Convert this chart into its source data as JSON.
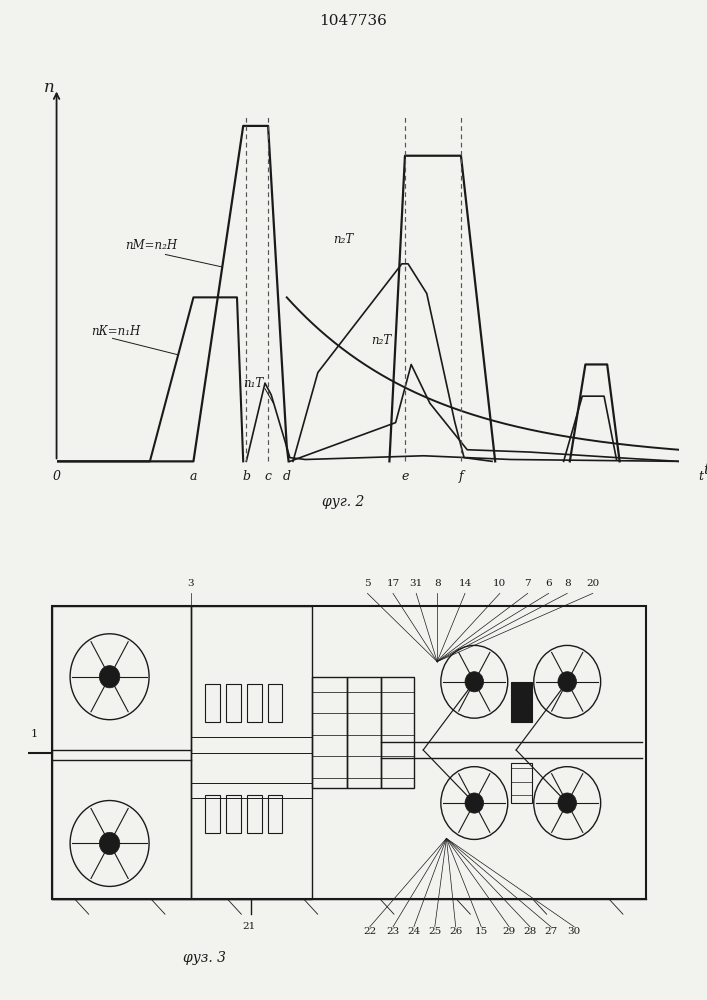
{
  "title": "1047736",
  "fig2_label": "φуг. 2",
  "fig3_label": "φуз. 3",
  "ylabel": "n",
  "xlabel": "t",
  "label_nM": "nМ=n₂Н",
  "label_nK": "nК=n₁Н",
  "label_n1T": "n₁Т",
  "label_n2T_upper": "n₂Т",
  "label_n2T_lower": "n₂Т",
  "bg_color": "#f2f2ee",
  "line_color": "#1a1a1a",
  "dashed_color": "#555555"
}
